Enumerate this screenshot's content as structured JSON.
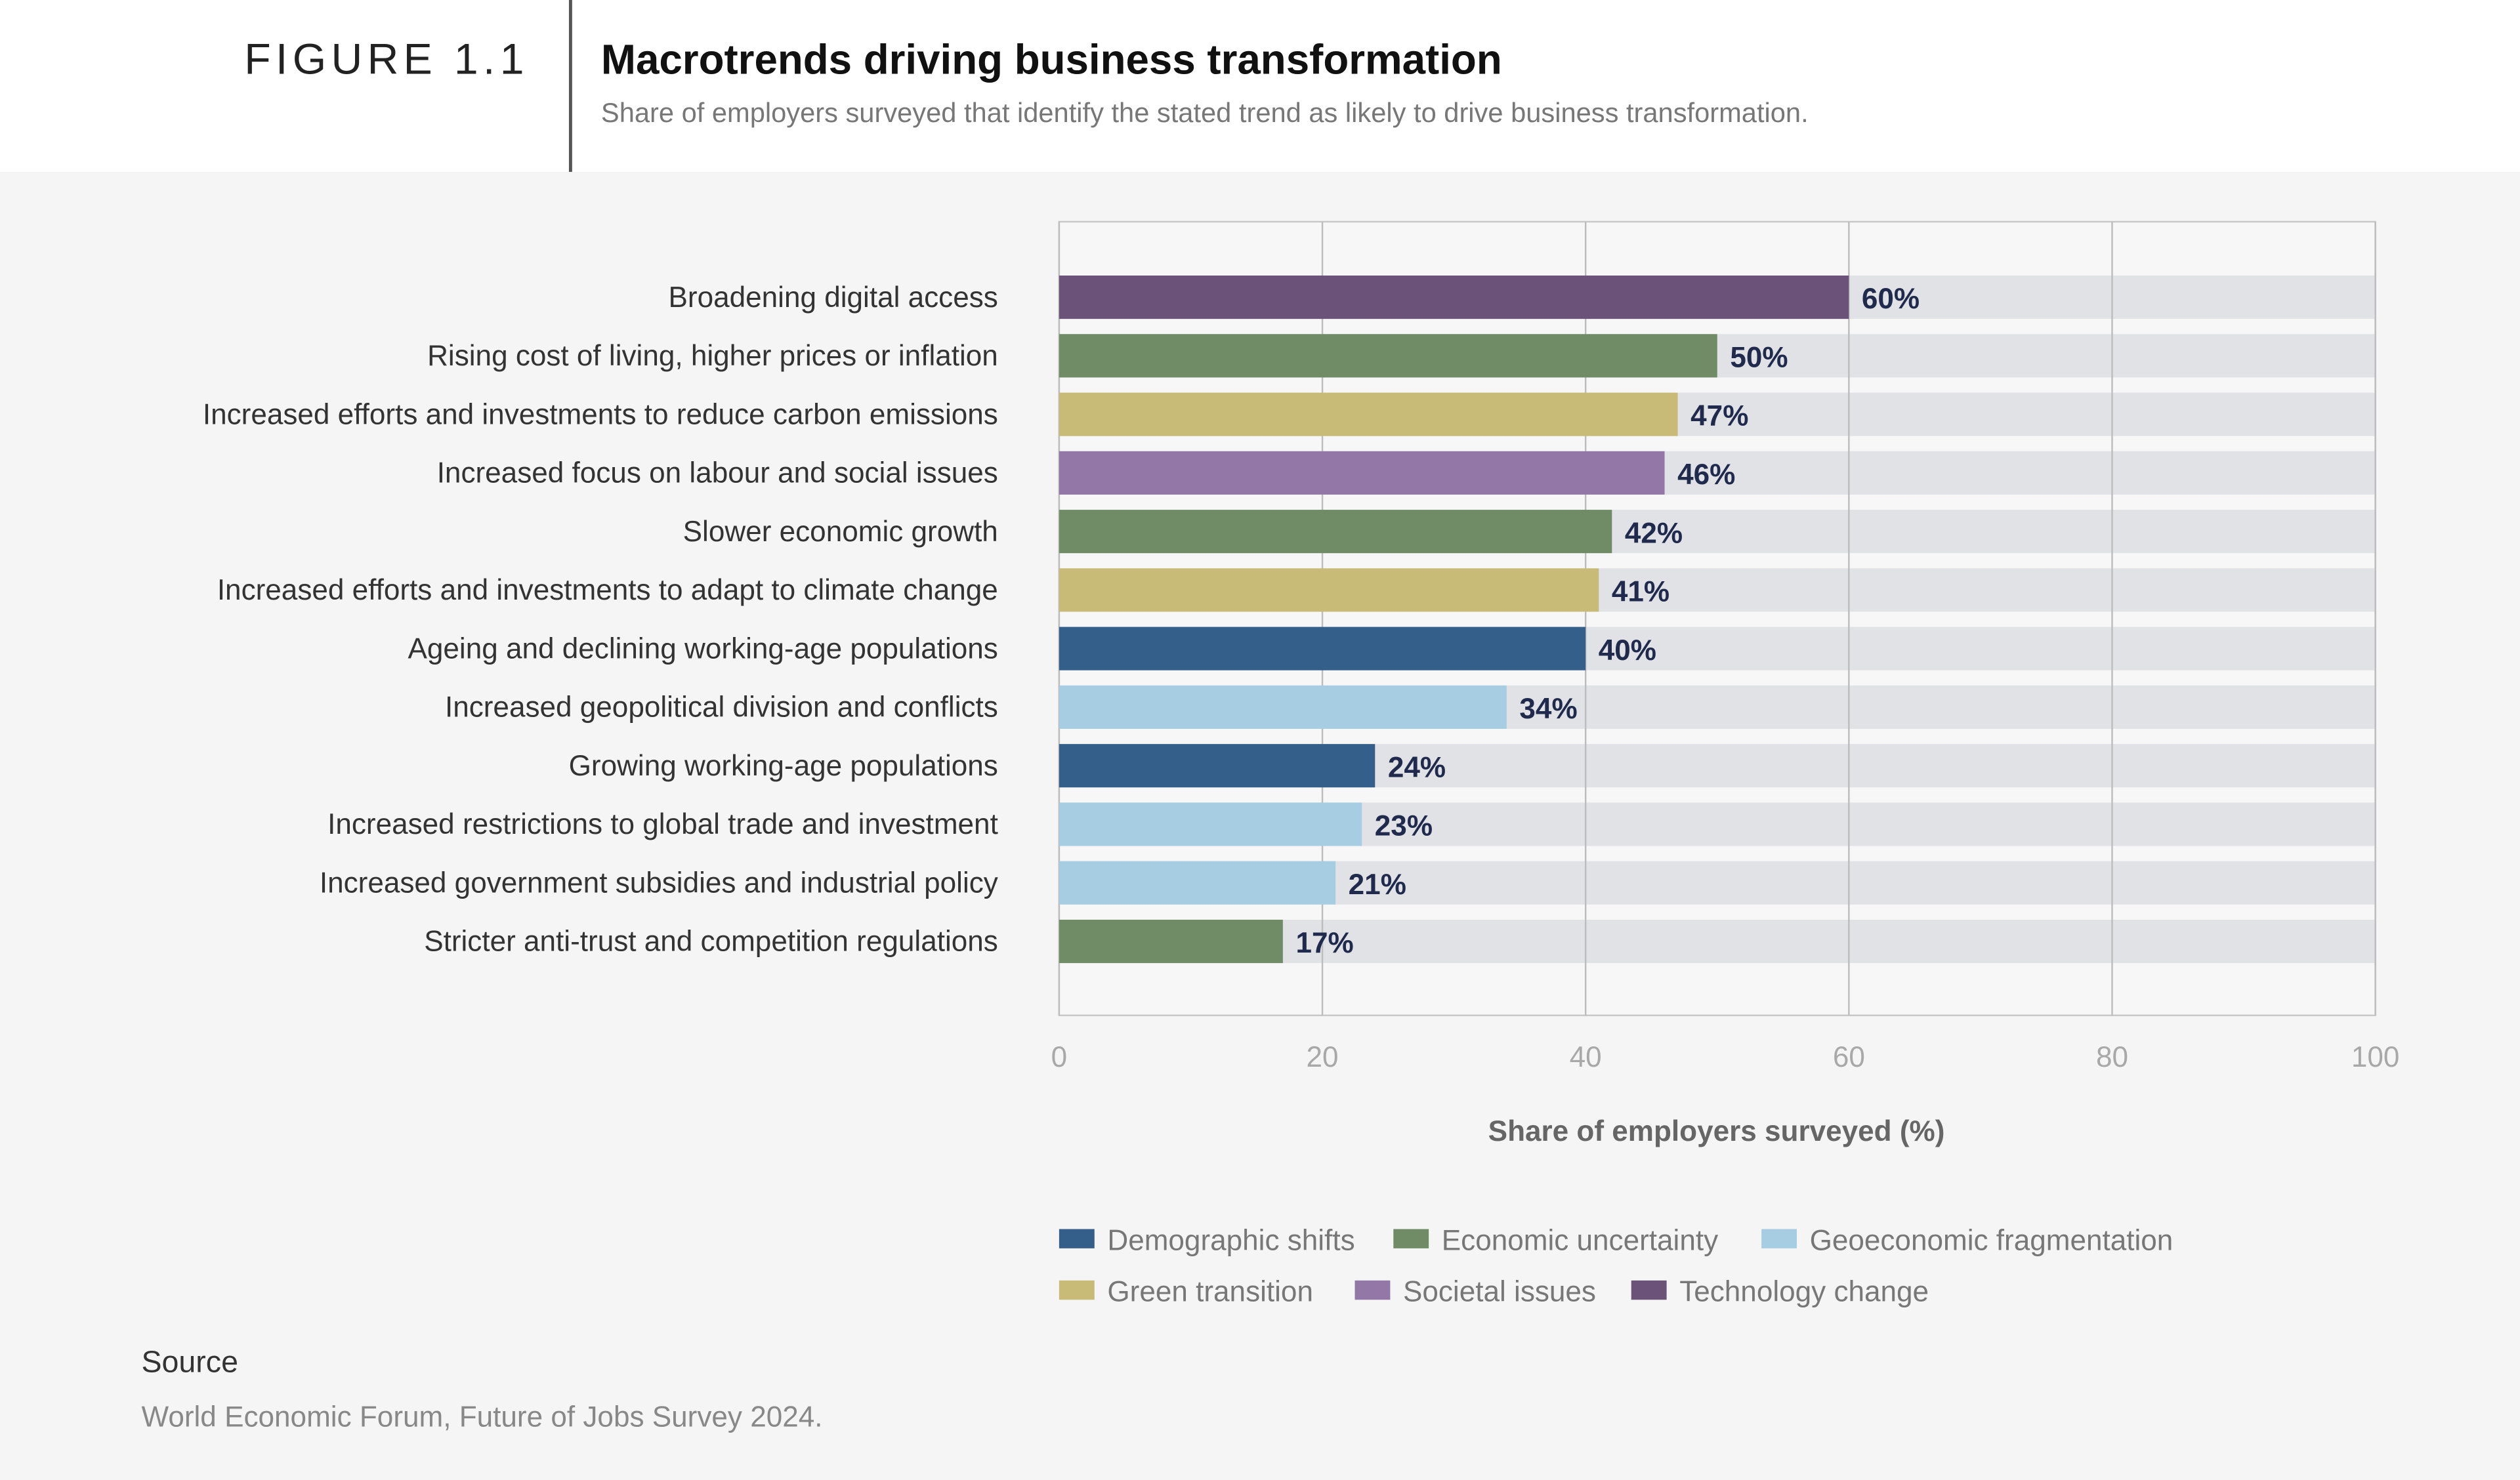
{
  "header": {
    "figure_label": "FIGURE 1.1",
    "title": "Macrotrends driving business transformation",
    "subtitle": "Share of employers surveyed that identify the stated trend as likely to drive business transformation."
  },
  "chart_data": {
    "type": "bar",
    "orientation": "horizontal",
    "title": "Macrotrends driving business transformation",
    "xlabel": "Share of employers surveyed (%)",
    "ylabel": "",
    "xlim": [
      0,
      100
    ],
    "xticks": [
      "0",
      "20",
      "40",
      "60",
      "80",
      "100"
    ],
    "grid": true,
    "legend_placement": "bottom",
    "categories": [
      "Broadening digital access",
      "Rising cost of living, higher prices or inflation",
      "Increased efforts and investments to reduce carbon emissions",
      "Increased focus on labour and social issues",
      "Slower economic growth",
      "Increased efforts and investments to adapt to climate change",
      "Ageing and declining working-age populations",
      "Increased geopolitical division and conflicts",
      "Growing working-age populations",
      "Increased restrictions to global trade and investment",
      "Increased government subsidies and industrial policy",
      "Stricter anti-trust and competition regulations"
    ],
    "values": [
      60,
      50,
      47,
      46,
      42,
      41,
      40,
      34,
      24,
      23,
      21,
      17
    ],
    "value_labels": [
      "60%",
      "50%",
      "47%",
      "46%",
      "42%",
      "41%",
      "40%",
      "34%",
      "24%",
      "23%",
      "21%",
      "17%"
    ],
    "groups": [
      "Technology change",
      "Economic uncertainty",
      "Green transition",
      "Societal issues",
      "Economic uncertainty",
      "Green transition",
      "Demographic shifts",
      "Geoeconomic fragmentation",
      "Demographic shifts",
      "Geoeconomic fragmentation",
      "Geoeconomic fragmentation",
      "Economic uncertainty"
    ],
    "legend": [
      {
        "name": "Demographic shifts",
        "color": "#335f8a"
      },
      {
        "name": "Economic uncertainty",
        "color": "#6f8c67"
      },
      {
        "name": "Geoeconomic fragmentation",
        "color": "#a7cde3"
      },
      {
        "name": "Green transition",
        "color": "#c8ba77"
      },
      {
        "name": "Societal issues",
        "color": "#9378a7"
      },
      {
        "name": "Technology change",
        "color": "#6a5279"
      }
    ],
    "track_color": "#e1e2e6",
    "value_label_color": "#1f2a4d"
  },
  "source": {
    "label": "Source",
    "text": "World Economic Forum, Future of Jobs Survey 2024."
  }
}
